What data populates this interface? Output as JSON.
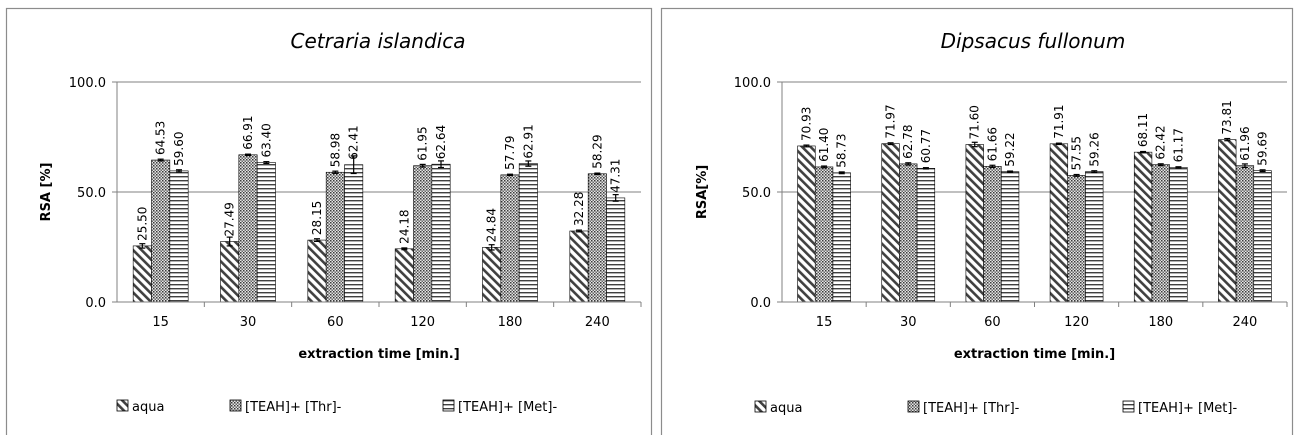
{
  "chart_data": [
    {
      "type": "bar",
      "title": "Cetraria islandica",
      "xlabel": "extraction time [min.]",
      "ylabel": "RSA [%]",
      "ylim": [
        0,
        100
      ],
      "yticks": [
        "0.0",
        "50.0",
        "100.0"
      ],
      "categories": [
        "15",
        "30",
        "60",
        "120",
        "180",
        "240"
      ],
      "series": [
        {
          "name": "aqua",
          "values": [
            25.5,
            27.49,
            28.15,
            24.18,
            24.84,
            32.28
          ],
          "labels": [
            "25.50",
            "27.49",
            "28.15",
            "24.18",
            "24.84",
            "32.28"
          ],
          "errors": [
            1.0,
            2.0,
            0.6,
            0.4,
            1.2,
            0.4
          ]
        },
        {
          "name": "[TEAH]+ [Thr]-",
          "values": [
            64.53,
            66.91,
            58.98,
            61.95,
            57.79,
            58.29
          ],
          "labels": [
            "64.53",
            "66.91",
            "58.98",
            "61.95",
            "57.79",
            "58.29"
          ],
          "errors": [
            0.4,
            0.3,
            0.5,
            0.6,
            0.3,
            0.3
          ]
        },
        {
          "name": "[TEAH]+ [Met]-",
          "values": [
            59.6,
            63.4,
            62.41,
            62.64,
            62.91,
            47.31
          ],
          "labels": [
            "59.60",
            "63.40",
            "62.41",
            "62.64",
            "62.91",
            "47.31"
          ],
          "errors": [
            0.5,
            0.4,
            4.0,
            1.5,
            1.2,
            1.5
          ]
        }
      ],
      "grid": true,
      "legend": "bottom"
    },
    {
      "type": "bar",
      "title": "Dipsacus fullonum",
      "xlabel": "extraction time [min.]",
      "ylabel": "RSA[%]",
      "ylim": [
        0,
        100
      ],
      "yticks": [
        "0.0",
        "50.0",
        "100.0"
      ],
      "categories": [
        "15",
        "30",
        "60",
        "120",
        "180",
        "240"
      ],
      "series": [
        {
          "name": "aqua",
          "values": [
            70.93,
            71.97,
            71.6,
            71.91,
            68.11,
            73.81
          ],
          "labels": [
            "70.93",
            "71.97",
            "71.60",
            "71.91",
            "68.11",
            "73.81"
          ],
          "errors": [
            0.4,
            0.4,
            1.0,
            0.3,
            0.3,
            0.5
          ]
        },
        {
          "name": "[TEAH]+ [Thr]-",
          "values": [
            61.4,
            62.78,
            61.66,
            57.55,
            62.42,
            61.96
          ],
          "labels": [
            "61.40",
            "62.78",
            "61.66",
            "57.55",
            "62.42",
            "61.96"
          ],
          "errors": [
            0.4,
            0.5,
            0.5,
            0.4,
            0.4,
            0.8
          ]
        },
        {
          "name": "[TEAH]+ [Met]-",
          "values": [
            58.73,
            60.77,
            59.22,
            59.26,
            61.17,
            59.69
          ],
          "labels": [
            "58.73",
            "60.77",
            "59.22",
            "59.26",
            "61.17",
            "59.69"
          ],
          "errors": [
            0.4,
            0.3,
            0.3,
            0.4,
            0.3,
            0.4
          ]
        }
      ],
      "grid": true,
      "legend": "bottom"
    }
  ],
  "colors": {
    "border": "#8c8c8c",
    "axis": "#808080",
    "bar_stroke": "#000000",
    "pattern": "#404040",
    "background": "#ffffff"
  },
  "patterns": [
    "diagonal-stripes",
    "dense-crosshatch",
    "horizontal-stripes"
  ]
}
